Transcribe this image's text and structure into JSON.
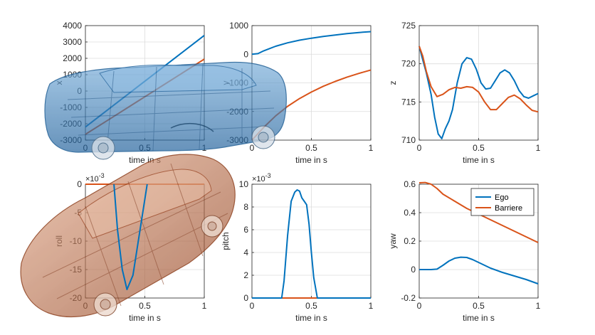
{
  "chart_data": [
    {
      "type": "line",
      "xlabel": "time in s",
      "ylabel": "x",
      "xlim": [
        0,
        1
      ],
      "ylim": [
        -3000,
        4000
      ],
      "xticks": [
        "0",
        "0.5",
        "1"
      ],
      "yticks": [
        "-3000",
        "-2000",
        "-1000",
        "0",
        "1000",
        "2000",
        "3000",
        "4000"
      ],
      "grid": true,
      "series": [
        {
          "color": "#0072BD",
          "x": [
            0,
            0.2,
            0.4,
            0.6,
            0.8,
            1
          ],
          "y": [
            -2200,
            -1080,
            40,
            1160,
            2280,
            3400
          ]
        },
        {
          "color": "#D95319",
          "x": [
            0,
            0.2,
            0.4,
            0.6,
            0.8,
            1
          ],
          "y": [
            -2650,
            -1730,
            -810,
            110,
            1030,
            1950
          ]
        }
      ]
    },
    {
      "type": "line",
      "xlabel": "time in s",
      "ylabel": "y",
      "xlim": [
        0,
        1
      ],
      "ylim": [
        -3000,
        1000
      ],
      "xticks": [
        "0",
        "0.5",
        "1"
      ],
      "yticks": [
        "-3000",
        "-2000",
        "-1000",
        "0",
        "1000"
      ],
      "grid": true,
      "series": [
        {
          "color": "#0072BD",
          "x": [
            0,
            0.05,
            0.1,
            0.2,
            0.3,
            0.4,
            0.5,
            0.6,
            0.7,
            0.8,
            0.9,
            1
          ],
          "y": [
            0,
            20,
            120,
            280,
            400,
            490,
            560,
            620,
            670,
            720,
            760,
            790
          ]
        },
        {
          "color": "#D95319",
          "x": [
            0,
            0.1,
            0.2,
            0.3,
            0.4,
            0.5,
            0.6,
            0.7,
            0.8,
            0.9,
            1
          ],
          "y": [
            -3000,
            -2550,
            -2150,
            -1820,
            -1550,
            -1320,
            -1120,
            -950,
            -800,
            -670,
            -550
          ]
        }
      ]
    },
    {
      "type": "line",
      "xlabel": "time in s",
      "ylabel": "z",
      "xlim": [
        0,
        1
      ],
      "ylim": [
        710,
        725
      ],
      "xticks": [
        "0",
        "0.5",
        "1"
      ],
      "yticks": [
        "710",
        "715",
        "720",
        "725"
      ],
      "grid": true,
      "series": [
        {
          "color": "#0072BD",
          "x": [
            0,
            0.03,
            0.06,
            0.1,
            0.13,
            0.16,
            0.19,
            0.22,
            0.25,
            0.28,
            0.32,
            0.36,
            0.4,
            0.44,
            0.48,
            0.52,
            0.56,
            0.6,
            0.64,
            0.68,
            0.72,
            0.76,
            0.8,
            0.84,
            0.88,
            0.92,
            0.96,
            1
          ],
          "y": [
            722.3,
            720.5,
            718.8,
            716.0,
            713.0,
            710.8,
            710.2,
            711.5,
            712.5,
            714.0,
            717.5,
            720.0,
            720.8,
            720.6,
            719.3,
            717.5,
            716.7,
            716.8,
            717.8,
            718.8,
            719.2,
            718.8,
            717.8,
            716.5,
            715.7,
            715.5,
            715.8,
            716.1
          ]
        },
        {
          "color": "#D95319",
          "x": [
            0,
            0.03,
            0.06,
            0.1,
            0.15,
            0.2,
            0.25,
            0.3,
            0.35,
            0.4,
            0.45,
            0.5,
            0.55,
            0.6,
            0.65,
            0.7,
            0.75,
            0.8,
            0.85,
            0.9,
            0.95,
            1
          ],
          "y": [
            722.3,
            721.0,
            719.0,
            717.0,
            715.7,
            716.0,
            716.6,
            716.9,
            716.8,
            717.0,
            716.9,
            716.3,
            715.0,
            714.0,
            714.0,
            714.8,
            715.6,
            715.9,
            715.4,
            714.6,
            713.9,
            713.7
          ]
        }
      ]
    },
    {
      "type": "line",
      "xlabel": "time in s",
      "ylabel": "roll",
      "exponent": "×10",
      "exponent_power": "-3",
      "xlim": [
        0,
        1
      ],
      "ylim": [
        -20,
        0
      ],
      "xticks": [
        "0",
        "0.5",
        "1"
      ],
      "yticks": [
        "-20",
        "-15",
        "-10",
        "-5",
        "0"
      ],
      "grid": true,
      "series": [
        {
          "color": "#D95319",
          "x": [
            0,
            1
          ],
          "y": [
            0,
            0
          ]
        },
        {
          "color": "#0072BD",
          "x": [
            0.24,
            0.27,
            0.31,
            0.35,
            0.4,
            0.46,
            0.52
          ],
          "y": [
            0,
            -8,
            -15,
            -18.5,
            -16,
            -8,
            0
          ]
        }
      ]
    },
    {
      "type": "line",
      "xlabel": "time in s",
      "ylabel": "pitch",
      "exponent": "×10",
      "exponent_power": "-3",
      "xlim": [
        0,
        1
      ],
      "ylim": [
        0,
        10
      ],
      "xticks": [
        "0",
        "0.5",
        "1"
      ],
      "yticks": [
        "0",
        "2",
        "4",
        "6",
        "8",
        "10"
      ],
      "grid": true,
      "series": [
        {
          "color": "#D95319",
          "x": [
            0,
            1
          ],
          "y": [
            0,
            0
          ]
        },
        {
          "color": "#0072BD",
          "x": [
            0,
            0.25,
            0.27,
            0.3,
            0.33,
            0.36,
            0.38,
            0.4,
            0.42,
            0.44,
            0.46,
            0.48,
            0.5,
            0.52,
            0.55,
            1
          ],
          "y": [
            0,
            0,
            1.5,
            5.5,
            8.5,
            9.3,
            9.5,
            9.4,
            8.8,
            8.5,
            8.2,
            6.5,
            4.0,
            1.8,
            0,
            0
          ]
        }
      ]
    },
    {
      "type": "line",
      "xlabel": "time in s",
      "ylabel": "yaw",
      "xlim": [
        0,
        1
      ],
      "ylim": [
        -0.2,
        0.6
      ],
      "xticks": [
        "0",
        "0.5",
        "1"
      ],
      "yticks": [
        "-0.2",
        "0",
        "0.2",
        "0.4",
        "0.6"
      ],
      "grid": true,
      "legend": {
        "placement": "top-right",
        "entries": [
          "Ego",
          "Barriere"
        ]
      },
      "series": [
        {
          "name": "Ego",
          "color": "#0072BD",
          "x": [
            0,
            0.1,
            0.15,
            0.2,
            0.25,
            0.3,
            0.35,
            0.4,
            0.45,
            0.5,
            0.6,
            0.7,
            0.8,
            0.9,
            1
          ],
          "y": [
            0,
            0,
            0.003,
            0.03,
            0.06,
            0.08,
            0.087,
            0.085,
            0.07,
            0.05,
            0.01,
            -0.02,
            -0.045,
            -0.07,
            -0.1
          ]
        },
        {
          "name": "Barriere",
          "color": "#D95319",
          "x": [
            0,
            0.05,
            0.1,
            0.15,
            0.2,
            0.3,
            0.4,
            0.5,
            0.6,
            0.7,
            0.8,
            0.9,
            1
          ],
          "y": [
            0.61,
            0.612,
            0.6,
            0.57,
            0.53,
            0.48,
            0.43,
            0.39,
            0.35,
            0.31,
            0.27,
            0.23,
            0.19
          ]
        }
      ]
    }
  ]
}
